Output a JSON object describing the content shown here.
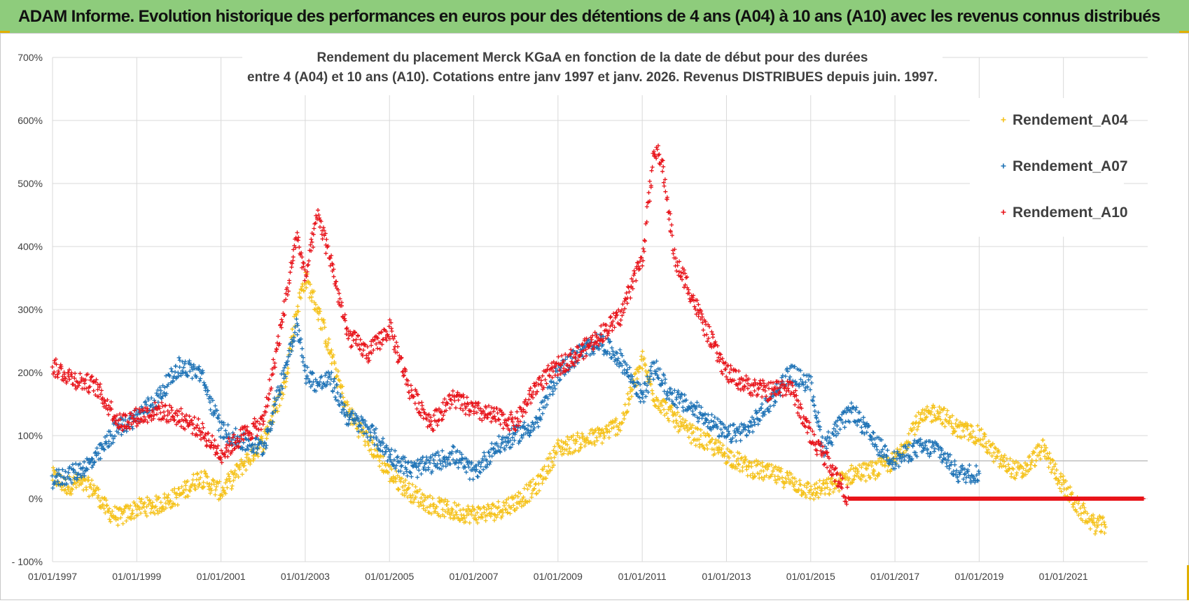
{
  "header": {
    "title": "ADAM Informe. Evolution historique des performances en euros pour des détentions de 4 ans (A04) à 10 ans (A10) avec les revenus connus distribués"
  },
  "chart_data": {
    "type": "scatter",
    "title_lines": [
      "Rendement du placement Merck KGaA en fonction de la date de début pour des durées",
      "entre 4 (A04) et 10 ans (A10).  Cotations entre janv 1997 et janv. 2026. Revenus DISTRIBUES depuis juin. 1997."
    ],
    "xlim": [
      1997.0,
      2023.0
    ],
    "ylim": [
      -100,
      700
    ],
    "x_tick_labels": [
      "01/01/1997",
      "01/01/1999",
      "01/01/2001",
      "01/01/2003",
      "01/01/2005",
      "01/01/2007",
      "01/01/2009",
      "01/01/2011",
      "01/01/2013",
      "01/01/2015",
      "01/01/2017",
      "01/01/2019",
      "01/01/2021"
    ],
    "y_tick_labels": [
      "- 100%",
      "0%",
      "100%",
      "200%",
      "300%",
      "400%",
      "500%",
      "600%",
      "700%"
    ],
    "grid": true,
    "legend_position": "top-right",
    "colors": {
      "Rendement_A04": "#f5c21b",
      "Rendement_A07": "#1f73b6",
      "Rendement_A10": "#e8141b",
      "grid": "#d9d9d9",
      "reference_line": "#bfbfbf"
    },
    "series": [
      {
        "name": "Rendement_A04",
        "points": [
          [
            1997.0,
            35
          ],
          [
            1997.3,
            20
          ],
          [
            1997.6,
            25
          ],
          [
            1998.0,
            15
          ],
          [
            1998.3,
            -20
          ],
          [
            1998.6,
            -30
          ],
          [
            1999.0,
            -15
          ],
          [
            1999.5,
            -10
          ],
          [
            2000.0,
            5
          ],
          [
            2000.5,
            35
          ],
          [
            2001.0,
            10
          ],
          [
            2001.3,
            35
          ],
          [
            2001.6,
            60
          ],
          [
            2002.0,
            90
          ],
          [
            2002.5,
            180
          ],
          [
            2002.8,
            300
          ],
          [
            2003.0,
            350
          ],
          [
            2003.3,
            300
          ],
          [
            2003.6,
            230
          ],
          [
            2004.0,
            140
          ],
          [
            2004.5,
            90
          ],
          [
            2005.0,
            40
          ],
          [
            2005.5,
            10
          ],
          [
            2006.0,
            -10
          ],
          [
            2006.5,
            -20
          ],
          [
            2007.0,
            -25
          ],
          [
            2007.5,
            -20
          ],
          [
            2008.0,
            -5
          ],
          [
            2008.5,
            20
          ],
          [
            2009.0,
            80
          ],
          [
            2009.5,
            90
          ],
          [
            2010.0,
            100
          ],
          [
            2010.5,
            120
          ],
          [
            2010.8,
            180
          ],
          [
            2011.0,
            220
          ],
          [
            2011.3,
            160
          ],
          [
            2011.6,
            140
          ],
          [
            2012.0,
            110
          ],
          [
            2012.5,
            90
          ],
          [
            2013.0,
            70
          ],
          [
            2013.5,
            50
          ],
          [
            2014.0,
            40
          ],
          [
            2014.5,
            30
          ],
          [
            2015.0,
            10
          ],
          [
            2015.5,
            20
          ],
          [
            2016.0,
            40
          ],
          [
            2016.5,
            45
          ],
          [
            2017.0,
            60
          ],
          [
            2017.5,
            120
          ],
          [
            2018.0,
            140
          ],
          [
            2018.5,
            110
          ],
          [
            2019.0,
            100
          ],
          [
            2019.5,
            60
          ],
          [
            2020.0,
            40
          ],
          [
            2020.5,
            80
          ],
          [
            2021.0,
            20
          ],
          [
            2021.3,
            -10
          ],
          [
            2021.7,
            -40
          ],
          [
            2022.0,
            -45
          ]
        ]
      },
      {
        "name": "Rendement_A07",
        "points": [
          [
            1997.0,
            30
          ],
          [
            1997.5,
            40
          ],
          [
            1998.0,
            60
          ],
          [
            1998.5,
            110
          ],
          [
            1999.0,
            130
          ],
          [
            1999.5,
            160
          ],
          [
            2000.0,
            210
          ],
          [
            2000.5,
            200
          ],
          [
            2001.0,
            110
          ],
          [
            2001.5,
            90
          ],
          [
            2002.0,
            80
          ],
          [
            2002.5,
            200
          ],
          [
            2002.8,
            280
          ],
          [
            2003.0,
            200
          ],
          [
            2003.3,
            180
          ],
          [
            2003.6,
            190
          ],
          [
            2004.0,
            130
          ],
          [
            2004.5,
            110
          ],
          [
            2005.0,
            70
          ],
          [
            2005.5,
            45
          ],
          [
            2006.0,
            55
          ],
          [
            2006.5,
            70
          ],
          [
            2007.0,
            40
          ],
          [
            2007.5,
            80
          ],
          [
            2008.0,
            100
          ],
          [
            2008.5,
            120
          ],
          [
            2009.0,
            200
          ],
          [
            2009.5,
            230
          ],
          [
            2010.0,
            250
          ],
          [
            2010.5,
            220
          ],
          [
            2011.0,
            160
          ],
          [
            2011.3,
            210
          ],
          [
            2011.6,
            170
          ],
          [
            2012.0,
            150
          ],
          [
            2012.5,
            130
          ],
          [
            2013.0,
            100
          ],
          [
            2013.5,
            110
          ],
          [
            2014.0,
            150
          ],
          [
            2014.5,
            200
          ],
          [
            2015.0,
            180
          ],
          [
            2015.3,
            80
          ],
          [
            2015.6,
            110
          ],
          [
            2016.0,
            140
          ],
          [
            2016.5,
            90
          ],
          [
            2017.0,
            60
          ],
          [
            2017.5,
            80
          ],
          [
            2018.0,
            80
          ],
          [
            2018.5,
            40
          ],
          [
            2019.0,
            40
          ]
        ]
      },
      {
        "name": "Rendement_A10",
        "points": [
          [
            1997.0,
            210
          ],
          [
            1997.5,
            190
          ],
          [
            1998.0,
            180
          ],
          [
            1998.3,
            150
          ],
          [
            1998.6,
            120
          ],
          [
            1999.0,
            130
          ],
          [
            1999.5,
            140
          ],
          [
            2000.0,
            130
          ],
          [
            2000.5,
            110
          ],
          [
            2001.0,
            70
          ],
          [
            2001.5,
            100
          ],
          [
            2002.0,
            120
          ],
          [
            2002.5,
            300
          ],
          [
            2002.8,
            420
          ],
          [
            2003.0,
            350
          ],
          [
            2003.3,
            450
          ],
          [
            2003.6,
            380
          ],
          [
            2004.0,
            260
          ],
          [
            2004.5,
            230
          ],
          [
            2005.0,
            270
          ],
          [
            2005.5,
            170
          ],
          [
            2006.0,
            120
          ],
          [
            2006.5,
            160
          ],
          [
            2007.0,
            140
          ],
          [
            2007.5,
            130
          ],
          [
            2008.0,
            120
          ],
          [
            2008.5,
            180
          ],
          [
            2009.0,
            210
          ],
          [
            2009.5,
            230
          ],
          [
            2010.0,
            260
          ],
          [
            2010.5,
            290
          ],
          [
            2010.8,
            350
          ],
          [
            2011.0,
            380
          ],
          [
            2011.3,
            560
          ],
          [
            2011.5,
            520
          ],
          [
            2011.8,
            370
          ],
          [
            2012.0,
            350
          ],
          [
            2012.5,
            270
          ],
          [
            2013.0,
            200
          ],
          [
            2013.5,
            180
          ],
          [
            2014.0,
            170
          ],
          [
            2014.5,
            180
          ],
          [
            2015.0,
            100
          ],
          [
            2015.5,
            50
          ],
          [
            2015.9,
            0
          ],
          [
            2017.0,
            0
          ],
          [
            2018.0,
            0
          ],
          [
            2019.0,
            0
          ],
          [
            2020.0,
            0
          ],
          [
            2021.0,
            0
          ],
          [
            2022.0,
            0
          ],
          [
            2022.9,
            0
          ]
        ]
      }
    ],
    "reference_line_y": 60
  }
}
